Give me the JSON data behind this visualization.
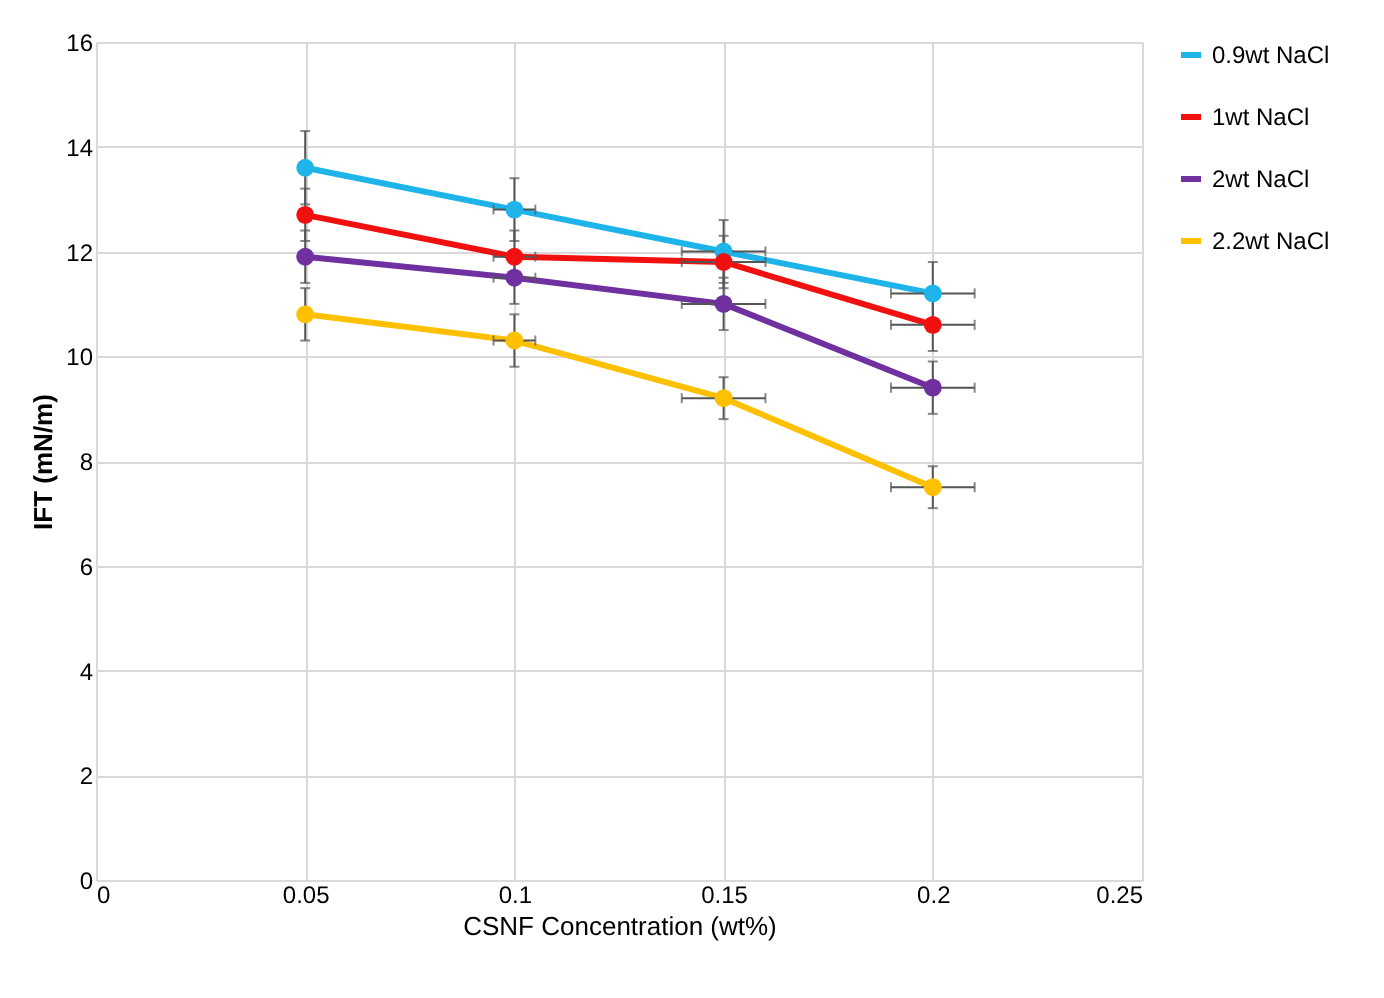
{
  "chart_data": {
    "type": "line",
    "xlabel": "CSNF Concentration (wt%)",
    "ylabel": "IFT (mN/m)",
    "x": [
      0.05,
      0.1,
      0.15,
      0.2
    ],
    "series": [
      {
        "name": "0.9wt NaCl",
        "color": "#1fb4e9",
        "values": [
          13.6,
          12.8,
          12.0,
          11.2
        ],
        "errors": [
          0.7,
          0.6,
          0.6,
          0.6
        ],
        "xerrors": [
          null,
          0.005,
          0.01,
          0.01
        ]
      },
      {
        "name": "1wt NaCl",
        "color": "#f01010",
        "values": [
          12.7,
          11.9,
          11.8,
          10.6
        ],
        "errors": [
          0.5,
          0.5,
          0.5,
          0.5
        ],
        "xerrors": [
          null,
          0.005,
          0.01,
          0.01
        ]
      },
      {
        "name": "2wt NaCl",
        "color": "#7030a0",
        "values": [
          11.9,
          11.5,
          11.0,
          9.4
        ],
        "errors": [
          0.5,
          0.5,
          0.5,
          0.5
        ],
        "xerrors": [
          null,
          0.005,
          0.01,
          0.01
        ]
      },
      {
        "name": "2.2wt NaCl",
        "color": "#ffc000",
        "values": [
          10.8,
          10.3,
          9.2,
          7.5
        ],
        "errors": [
          0.5,
          0.5,
          0.4,
          0.4
        ],
        "xerrors": [
          null,
          0.005,
          0.01,
          0.01
        ]
      }
    ],
    "xlim": [
      0,
      0.25
    ],
    "xticks": [
      0,
      0.05,
      0.1,
      0.15,
      0.2,
      0.25
    ],
    "ylim": [
      0,
      16
    ],
    "yticks": [
      0,
      2,
      4,
      6,
      8,
      10,
      12,
      14,
      16
    ],
    "grid": true,
    "legend": "right",
    "marker": "circle",
    "line_style": "solid"
  }
}
